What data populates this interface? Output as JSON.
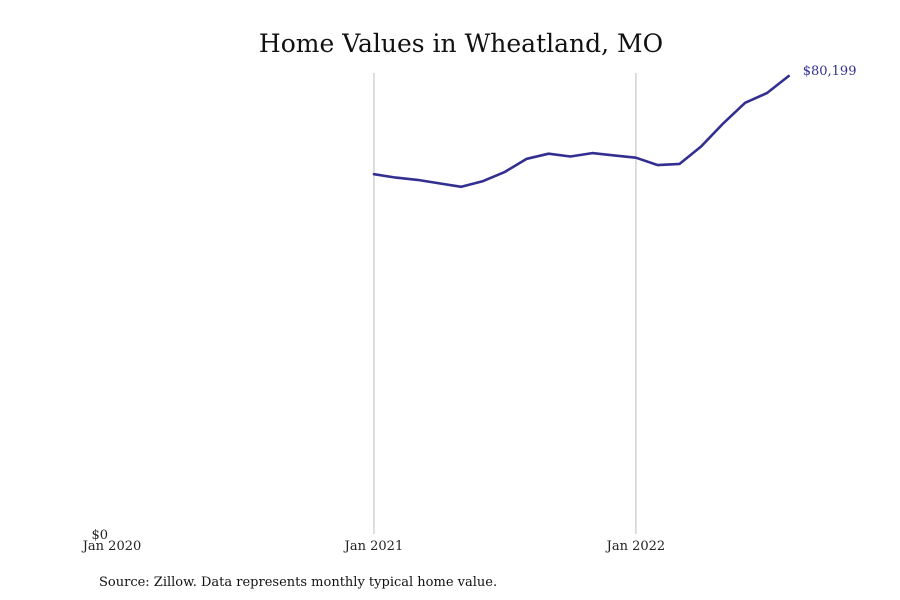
{
  "chart_data": {
    "type": "line",
    "title": "Home Values in Wheatland, MO",
    "xlabel": "",
    "ylabel": "",
    "x_tick_labels": [
      "Jan 2020",
      "Jan 2021",
      "Jan 2022"
    ],
    "y_tick_labels": [
      "$0"
    ],
    "ylim": [
      0,
      80199
    ],
    "x_range": [
      "2020-01",
      "2022-08"
    ],
    "grid": "vertical lines at Jan 2021 and Jan 2022",
    "series": [
      {
        "color": "#332f91",
        "x": [
          "2021-01",
          "2021-02",
          "2021-03",
          "2021-04",
          "2021-05",
          "2021-06",
          "2021-07",
          "2021-08",
          "2021-09",
          "2021-10",
          "2021-11",
          "2021-12",
          "2022-01",
          "2022-02",
          "2022-03",
          "2022-04",
          "2022-05",
          "2022-06",
          "2022-07",
          "2022-08"
        ],
        "values": [
          63000,
          62400,
          62000,
          61400,
          60800,
          61800,
          63400,
          65700,
          66600,
          66100,
          66700,
          66300,
          65900,
          64600,
          64800,
          67900,
          71900,
          75500,
          77200,
          80199
        ]
      }
    ],
    "end_label": "$80,199"
  },
  "source": "Source: Zillow. Data represents monthly typical home value.",
  "colors": {
    "line": "#332f91",
    "gridline": "#bbbbbb"
  }
}
